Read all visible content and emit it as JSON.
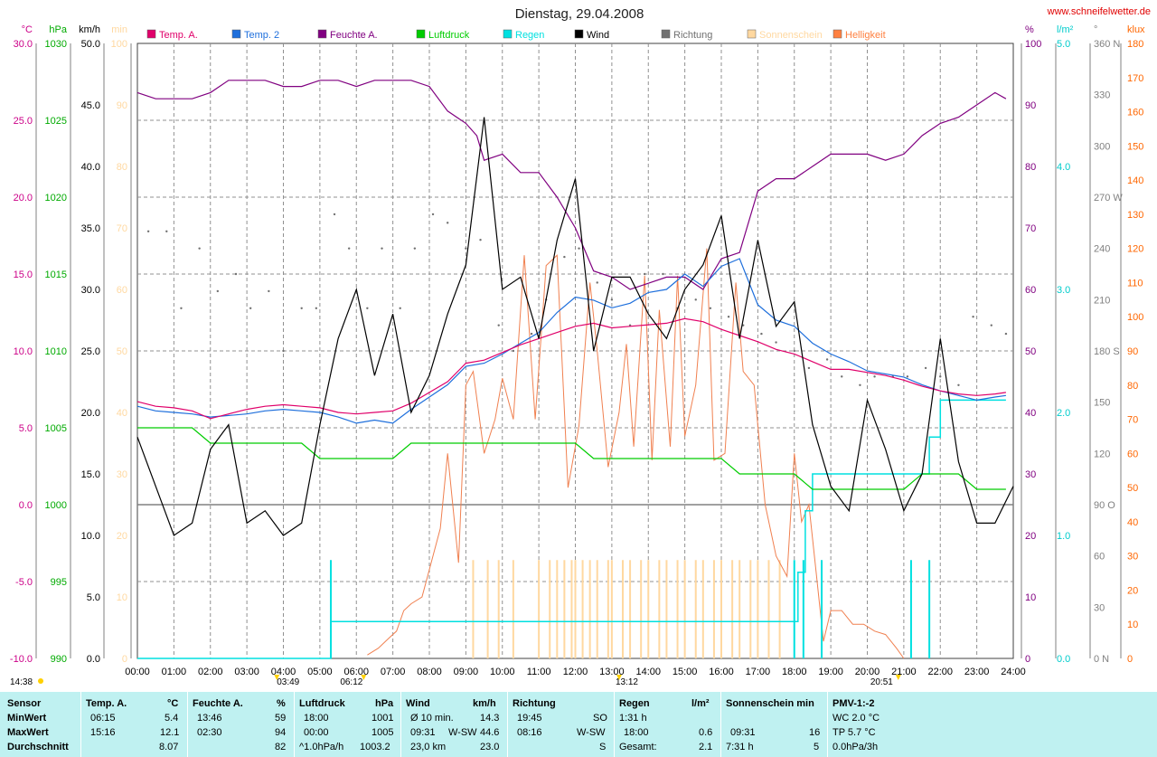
{
  "chart_data": {
    "type": "line",
    "title": "Dienstag, 29.04.2008",
    "source": "www.schneifelwetter.de",
    "x": {
      "ticks": [
        "00:00",
        "01:00",
        "02:00",
        "03:00",
        "04:00",
        "05:00",
        "06:00",
        "07:00",
        "08:00",
        "09:00",
        "10:00",
        "11:00",
        "12:00",
        "13:00",
        "14:00",
        "15:00",
        "16:00",
        "17:00",
        "18:00",
        "19:00",
        "20:00",
        "21:00",
        "22:00",
        "23:00",
        "24:00"
      ],
      "range": [
        0,
        24
      ],
      "marks": [
        "14:38",
        "03:49",
        "06:12",
        "13:12",
        "20:51"
      ]
    },
    "axes_left": [
      {
        "unit": "°C",
        "color": "#cc0088",
        "range": [
          -10,
          30
        ],
        "ticks": [
          "30.0",
          "25.0",
          "20.0",
          "15.0",
          "10.0",
          "5.0",
          "0.0",
          "-5.0",
          "-10.0"
        ]
      },
      {
        "unit": "hPa",
        "color": "#00aa00",
        "range": [
          990,
          1030
        ],
        "ticks": [
          "1030",
          "1025",
          "1020",
          "1015",
          "1010",
          "1005",
          "1000",
          "995",
          "990"
        ]
      },
      {
        "unit": "km/h",
        "color": "#000000",
        "range": [
          0,
          50
        ],
        "ticks": [
          "50.0",
          "45.0",
          "40.0",
          "35.0",
          "30.0",
          "25.0",
          "20.0",
          "15.0",
          "10.0",
          "5.0",
          "0.0"
        ]
      },
      {
        "unit": "min",
        "color": "#ffd8a0",
        "range": [
          0,
          100
        ],
        "ticks": [
          "100",
          "90",
          "80",
          "70",
          "60",
          "50",
          "40",
          "30",
          "20",
          "10",
          "0"
        ]
      }
    ],
    "axes_right": [
      {
        "unit": "%",
        "color": "#800080",
        "range": [
          0,
          100
        ],
        "ticks": [
          "100",
          "90",
          "80",
          "70",
          "60",
          "50",
          "40",
          "30",
          "20",
          "10",
          "0"
        ]
      },
      {
        "unit": "l/m²",
        "color": "#00cccc",
        "range": [
          0,
          5
        ],
        "ticks": [
          "5.0",
          "4.0",
          "3.0",
          "2.0",
          "1.0",
          "0.0"
        ]
      },
      {
        "unit": "°",
        "color": "#808080",
        "range": [
          0,
          360
        ],
        "ticks": [
          "360 N",
          "330",
          "300",
          "270 W",
          "240",
          "210",
          "180 S",
          "150",
          "120",
          "90 O",
          "60",
          "30",
          "0 N"
        ]
      },
      {
        "unit": "klux",
        "color": "#ff6600",
        "range": [
          0,
          180
        ],
        "ticks": [
          "180",
          "170",
          "160",
          "150",
          "140",
          "130",
          "120",
          "110",
          "100",
          "90",
          "80",
          "70",
          "60",
          "50",
          "40",
          "30",
          "20",
          "10",
          "0"
        ]
      }
    ],
    "legend": [
      {
        "name": "Temp. A.",
        "color": "#e0006a"
      },
      {
        "name": "Temp. 2",
        "color": "#1e6fdc"
      },
      {
        "name": "Feuchte A.",
        "color": "#800080"
      },
      {
        "name": "Luftdruck",
        "color": "#00cc00"
      },
      {
        "name": "Regen",
        "color": "#00e0e0"
      },
      {
        "name": "Wind",
        "color": "#000000"
      },
      {
        "name": "Richtung",
        "color": "#707070"
      },
      {
        "name": "Sonnenschein",
        "color": "#ffd8a0"
      },
      {
        "name": "Helligkeit",
        "color": "#ff8040"
      }
    ],
    "series": {
      "temp_a": {
        "x": [
          0,
          0.5,
          1,
          1.5,
          2,
          2.5,
          3,
          3.5,
          4,
          4.5,
          5,
          5.5,
          6,
          6.5,
          7,
          7.5,
          8,
          8.5,
          9,
          9.5,
          10,
          10.5,
          11,
          11.5,
          12,
          12.5,
          13,
          13.5,
          14,
          14.5,
          15,
          15.5,
          16,
          16.5,
          17,
          17.5,
          18,
          18.5,
          19,
          19.5,
          20,
          20.5,
          21,
          21.5,
          22,
          22.5,
          23,
          23.5,
          23.8
        ],
        "y": [
          6.7,
          6.4,
          6.3,
          6.1,
          5.6,
          5.9,
          6.2,
          6.4,
          6.5,
          6.4,
          6.3,
          6.0,
          5.9,
          6.0,
          6.1,
          6.6,
          7.3,
          8.0,
          9.2,
          9.4,
          9.9,
          10.4,
          10.8,
          11.2,
          11.6,
          11.8,
          11.5,
          11.6,
          11.7,
          11.8,
          12.1,
          11.9,
          11.4,
          11.0,
          10.6,
          10.1,
          9.8,
          9.3,
          8.8,
          8.8,
          8.6,
          8.4,
          8.1,
          7.7,
          7.4,
          7.2,
          7.1,
          7.2,
          7.3
        ]
      },
      "temp_2": {
        "x": [
          0,
          0.5,
          1,
          1.5,
          2,
          2.5,
          3,
          3.5,
          4,
          4.5,
          5,
          5.5,
          6,
          6.5,
          7,
          7.5,
          8,
          8.5,
          9,
          9.5,
          10,
          10.5,
          11,
          11.5,
          12,
          12.5,
          13,
          13.5,
          14,
          14.5,
          15,
          15.5,
          16,
          16.5,
          17,
          17.5,
          18,
          18.5,
          19,
          19.5,
          20,
          20.5,
          21,
          21.5,
          22,
          22.5,
          23,
          23.5,
          23.8
        ],
        "y": [
          6.4,
          6.1,
          6.0,
          5.9,
          5.7,
          5.8,
          5.9,
          6.1,
          6.2,
          6.1,
          6.0,
          5.7,
          5.3,
          5.5,
          5.3,
          6.2,
          7.0,
          7.8,
          9.0,
          9.2,
          9.8,
          10.5,
          11.2,
          12.5,
          13.5,
          13.3,
          12.8,
          13.1,
          13.8,
          14.0,
          15.0,
          14.2,
          15.5,
          16.0,
          13.0,
          12.0,
          11.6,
          10.5,
          9.8,
          9.3,
          8.7,
          8.5,
          8.3,
          7.8,
          7.4,
          7.1,
          6.8,
          7.0,
          7.1
        ]
      },
      "feuchte": {
        "x": [
          0,
          0.5,
          1,
          1.5,
          2,
          2.5,
          3,
          3.5,
          4,
          4.5,
          5,
          5.5,
          6,
          6.5,
          7,
          7.5,
          8,
          8.5,
          9,
          9.3,
          9.5,
          10,
          10.5,
          11,
          11.5,
          12,
          12.5,
          13,
          13.5,
          14,
          14.5,
          15,
          15.5,
          16,
          16.5,
          17,
          17.5,
          18,
          18.5,
          19,
          19.5,
          20,
          20.5,
          21,
          21.5,
          22,
          22.5,
          23,
          23.5,
          23.8
        ],
        "y": [
          92,
          91,
          91,
          91,
          92,
          94,
          94,
          94,
          93,
          93,
          94,
          94,
          93,
          94,
          94,
          94,
          93,
          89,
          87,
          85,
          81,
          82,
          79,
          79,
          75,
          70,
          63,
          62,
          60,
          61,
          62,
          62,
          60,
          65,
          66,
          76,
          78,
          78,
          80,
          82,
          82,
          82,
          81,
          82,
          85,
          87,
          88,
          90,
          92,
          91
        ]
      },
      "luftdruck": {
        "x": [
          0,
          0.5,
          1,
          1.5,
          2,
          2.5,
          3,
          3.5,
          4,
          4.5,
          5,
          5.5,
          6,
          6.5,
          7,
          7.5,
          8,
          8.5,
          9,
          9.5,
          10,
          10.5,
          11,
          11.5,
          12,
          12.5,
          13,
          13.5,
          14,
          14.5,
          15,
          15.5,
          16,
          16.5,
          17,
          17.5,
          18,
          18.5,
          19,
          19.5,
          20,
          20.5,
          21,
          21.5,
          22,
          22.5,
          23,
          23.5,
          23.8
        ],
        "y": [
          1005,
          1005,
          1005,
          1005,
          1004,
          1004,
          1004,
          1004,
          1004,
          1004,
          1003,
          1003,
          1003,
          1003,
          1003,
          1004,
          1004,
          1004,
          1004,
          1004,
          1004,
          1004,
          1004,
          1004,
          1004,
          1003,
          1003,
          1003,
          1003,
          1003,
          1003,
          1003,
          1003,
          1002,
          1002,
          1002,
          1002,
          1001,
          1001,
          1001,
          1001,
          1001,
          1001,
          1002,
          1002,
          1002,
          1001,
          1001,
          1001
        ]
      },
      "wind": {
        "x": [
          0,
          0.5,
          1,
          1.5,
          2,
          2.5,
          3,
          3.5,
          4,
          4.5,
          5,
          5.5,
          6,
          6.5,
          7,
          7.5,
          8,
          8.5,
          9,
          9.5,
          10,
          10.5,
          11,
          11.5,
          12,
          12.5,
          13,
          13.5,
          14,
          14.5,
          15,
          15.5,
          16,
          16.5,
          17,
          17.5,
          18,
          18.5,
          19,
          19.5,
          20,
          20.5,
          21,
          21.5,
          22,
          22.5,
          23,
          23.5,
          24
        ],
        "y": [
          18,
          14,
          10,
          11,
          17,
          19,
          11,
          12,
          10,
          11,
          19,
          26,
          30,
          23,
          28,
          20,
          23,
          28,
          32,
          44,
          30,
          31,
          26,
          34,
          39,
          25,
          31,
          31,
          28,
          26,
          30,
          32,
          36,
          26,
          34,
          27,
          29,
          19,
          14,
          12,
          21,
          17,
          12,
          15,
          26,
          16,
          11,
          11,
          14
        ]
      },
      "richtung": {
        "x": [
          0.3,
          0.8,
          1.2,
          1.7,
          2.2,
          2.7,
          3.1,
          3.6,
          4.0,
          4.5,
          4.9,
          5.4,
          5.8,
          6.3,
          6.7,
          7.2,
          7.6,
          8.1,
          8.5,
          9.0,
          9.4,
          9.9,
          10.3,
          10.8,
          11.2,
          11.7,
          12.1,
          12.6,
          13.0,
          13.5,
          13.9,
          14.4,
          14.8,
          15.3,
          15.7,
          16.2,
          16.6,
          17.1,
          17.5,
          18.0,
          18.4,
          18.9,
          19.3,
          19.8,
          20.2,
          20.7,
          21.1,
          21.6,
          22.0,
          22.5,
          22.9,
          23.4,
          23.8
        ],
        "y": [
          250,
          250,
          205,
          240,
          215,
          225,
          205,
          215,
          180,
          205,
          205,
          260,
          240,
          205,
          240,
          205,
          240,
          260,
          255,
          240,
          245,
          195,
          180,
          190,
          210,
          235,
          240,
          220,
          210,
          195,
          225,
          225,
          205,
          210,
          205,
          200,
          195,
          190,
          185,
          180,
          170,
          175,
          165,
          160,
          165,
          165,
          165,
          170,
          165,
          160,
          200,
          195,
          190
        ]
      },
      "sonnenschein": {
        "x": [
          9.2,
          9.6,
          9.9,
          10.3,
          11.0,
          11.3,
          11.5,
          11.7,
          11.9,
          12.0,
          12.2,
          12.4,
          12.6,
          12.9,
          13.0,
          13.3,
          13.5,
          13.8,
          14.0,
          14.3,
          14.5,
          14.8,
          15.0,
          15.3,
          15.5,
          15.8,
          16.0,
          16.3,
          16.5,
          16.8,
          17.0,
          17.3,
          17.6
        ],
        "y": [
          16,
          16,
          16,
          16,
          16,
          16,
          16,
          16,
          16,
          16,
          16,
          16,
          16,
          16,
          16,
          16,
          16,
          16,
          16,
          16,
          16,
          16,
          16,
          16,
          16,
          16,
          16,
          16,
          16,
          16,
          16,
          16,
          16
        ]
      },
      "helligkeit": {
        "x": [
          6.3,
          6.6,
          6.9,
          7.1,
          7.3,
          7.5,
          7.8,
          8.0,
          8.3,
          8.5,
          8.8,
          9.0,
          9.2,
          9.5,
          9.8,
          10.0,
          10.3,
          10.6,
          10.9,
          11.2,
          11.5,
          11.8,
          12.1,
          12.4,
          12.6,
          12.9,
          13.2,
          13.4,
          13.6,
          13.9,
          14.1,
          14.3,
          14.6,
          14.8,
          15.0,
          15.3,
          15.6,
          15.8,
          16.1,
          16.4,
          16.6,
          16.9,
          17.2,
          17.5,
          17.8,
          18.0,
          18.2,
          18.4,
          18.6,
          18.8,
          19.0,
          19.3,
          19.6,
          19.9,
          20.2,
          20.5,
          20.8,
          21.0
        ],
        "y": [
          1,
          3,
          6,
          8,
          14,
          16,
          18,
          26,
          38,
          60,
          28,
          80,
          84,
          60,
          70,
          82,
          70,
          118,
          70,
          115,
          118,
          50,
          68,
          110,
          90,
          56,
          72,
          92,
          62,
          112,
          58,
          102,
          62,
          112,
          65,
          80,
          120,
          58,
          60,
          110,
          84,
          80,
          45,
          30,
          24,
          60,
          40,
          45,
          25,
          5,
          14,
          14,
          10,
          10,
          8,
          7,
          3,
          0
        ]
      },
      "regen": {
        "x": [
          0,
          5.1,
          5.3,
          18.0,
          18.1,
          18.3,
          18.5,
          21.2,
          21.5,
          21.7,
          22.0,
          23.8
        ],
        "y": [
          0,
          0,
          0.3,
          0.3,
          0.7,
          1.2,
          1.5,
          1.5,
          1.5,
          1.8,
          2.1,
          2.1
        ]
      }
    }
  },
  "stats": {
    "headers": {
      "sensor": "Sensor",
      "temp": "Temp. A.",
      "temp_unit": "°C",
      "feuchte": "Feuchte A.",
      "feuchte_unit": "%",
      "luftdruck": "Luftdruck",
      "luftdruck_unit": "hPa",
      "wind": "Wind",
      "wind_unit": "km/h",
      "richtung": "Richtung",
      "regen": "Regen",
      "regen_unit": "l/m²",
      "sonne": "Sonnenschein min",
      "pmv": "PMV-1:-2"
    },
    "rows": {
      "min_label": "MinWert",
      "max_label": "MaxWert",
      "avg_label": "Durchschnitt"
    },
    "temp": {
      "min_time": "06:15",
      "min": "5.4",
      "max_time": "15:16",
      "max": "12.1",
      "avg": "8.07"
    },
    "feuchte": {
      "min_time": "13:46",
      "min": "59",
      "max_time": "02:30",
      "max": "94",
      "avg": "82"
    },
    "luftdruck": {
      "min_time": "18:00",
      "min": "1001",
      "max_time": "00:00",
      "max": "1005",
      "trend": "^1.0hPa/h",
      "avg": "1003.2"
    },
    "wind": {
      "r1_label": "Ø 10 min.",
      "r1": "14.3",
      "max_time": "09:31",
      "max_dir": "W-SW",
      "max": "44.6",
      "dist": "23,0 km",
      "avg": "23.0"
    },
    "richtung": {
      "r1_time": "19:45",
      "r1": "SO",
      "r2_time": "08:16",
      "r2": "W-SW",
      "avg": "S"
    },
    "regen": {
      "r1": "1:31 h",
      "r2_time": "18:00",
      "r2": "0.6",
      "total_label": "Gesamt:",
      "total": "2.1"
    },
    "sonne": {
      "max_time": "09:31",
      "max": "16",
      "total": "7:31 h",
      "avg": "5"
    },
    "pmv": {
      "wc": "WC 2.0 °C",
      "tp": "TP 5.7 °C",
      "trend": "0.0hPa/3h"
    }
  }
}
